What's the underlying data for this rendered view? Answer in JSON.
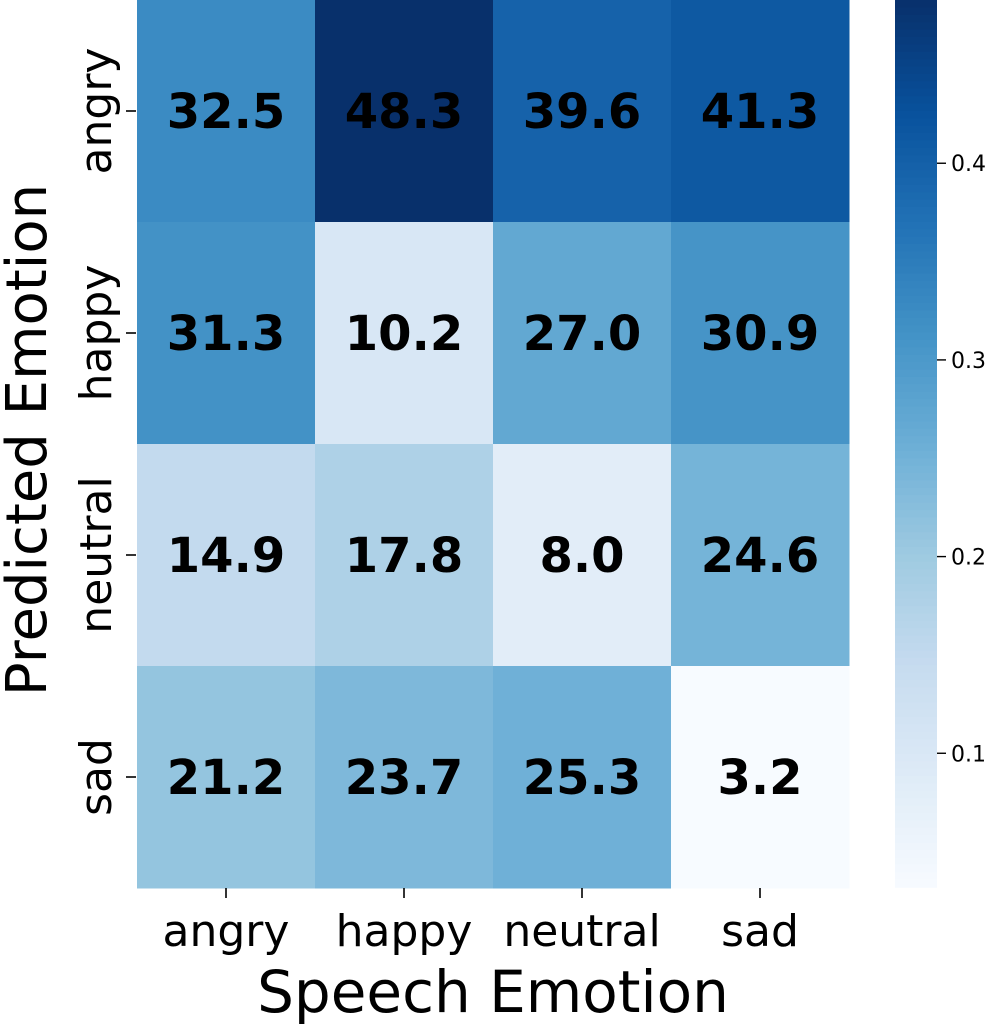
{
  "chart_data": {
    "type": "heatmap",
    "xlabel": "Speech Emotion",
    "ylabel": "Predicted Emotion",
    "x_categories": [
      "angry",
      "happy",
      "neutral",
      "sad"
    ],
    "y_categories": [
      "angry",
      "happy",
      "neutral",
      "sad"
    ],
    "values": [
      [
        32.5,
        48.3,
        39.6,
        41.3
      ],
      [
        31.3,
        10.2,
        27.0,
        30.9
      ],
      [
        14.9,
        17.8,
        8.0,
        24.6
      ],
      [
        21.2,
        23.7,
        25.3,
        3.2
      ]
    ],
    "cell_labels": [
      [
        "32.5",
        "48.3",
        "39.6",
        "41.3"
      ],
      [
        "31.3",
        "10.2",
        "27.0",
        "30.9"
      ],
      [
        "14.9",
        "17.8",
        "8.0",
        "24.6"
      ],
      [
        "21.2",
        "23.7",
        "25.3",
        "3.2"
      ]
    ],
    "colormap": "Blues",
    "colorbar": {
      "range": [
        0.032,
        0.483
      ],
      "ticks": [
        0.1,
        0.2,
        0.3,
        0.4
      ],
      "tick_labels": [
        "0.1",
        "0.2",
        "0.3",
        "0.4"
      ]
    },
    "colors": {
      "cmap_low": "#f7fbff",
      "cmap_high": "#08306b",
      "annotation_text": "#000000",
      "axis_text": "#000000"
    }
  }
}
